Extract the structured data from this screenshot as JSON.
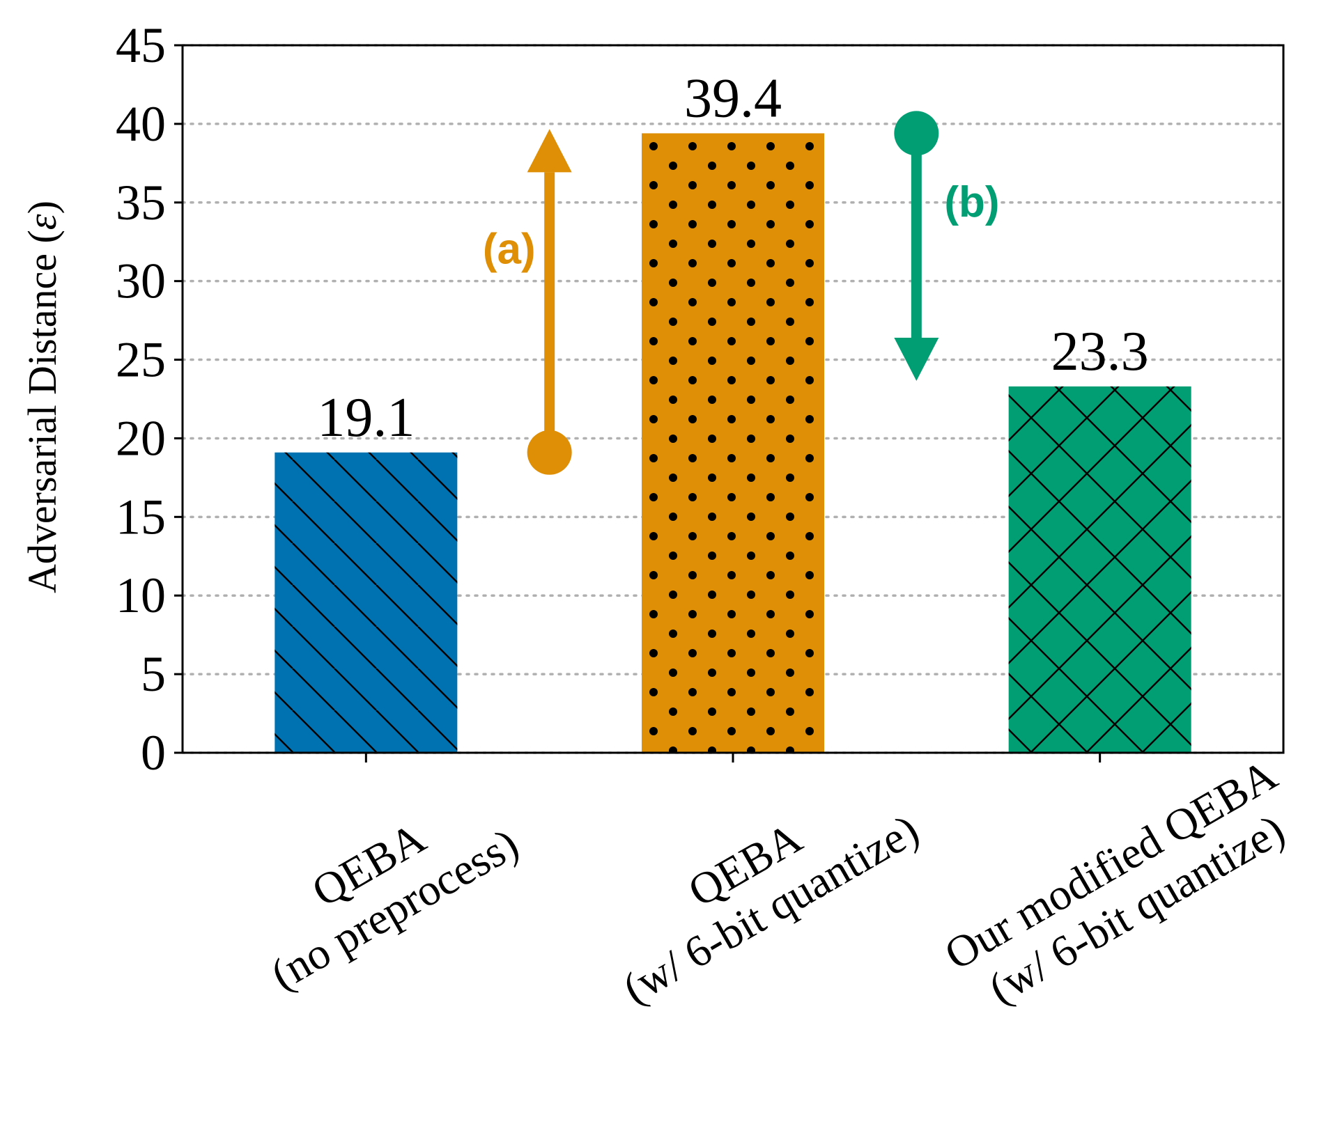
{
  "chart_data": {
    "type": "bar",
    "categories": [
      [
        "QEBA",
        "(no preprocess)"
      ],
      [
        "QEBA",
        "(w/ 6-bit quantize)"
      ],
      [
        "Our modified QEBA",
        "(w/ 6-bit quantize)"
      ]
    ],
    "values": [
      19.1,
      39.4,
      23.3
    ],
    "value_labels": [
      "19.1",
      "39.4",
      "23.3"
    ],
    "bar_colors": [
      "#0072b2",
      "#de8f05",
      "#029e73"
    ],
    "bar_hatches": [
      "diagonal",
      "dots",
      "crosshatch"
    ],
    "ylabel_prefix": "Adversarial Distance (",
    "ylabel_symbol": "ε",
    "ylabel_suffix": ")",
    "ylim": [
      0,
      45
    ],
    "yticks": [
      0,
      5,
      10,
      15,
      20,
      25,
      30,
      35,
      40,
      45
    ],
    "grid": {
      "axis": "y",
      "style": "dotted",
      "color": "#b0b0b0"
    },
    "annotations": [
      {
        "label": "(a)",
        "color": "#de8f05",
        "from": 19.1,
        "to": 39.4,
        "direction": "up"
      },
      {
        "label": "(b)",
        "color": "#029e73",
        "from": 39.4,
        "to": 23.3,
        "direction": "down"
      }
    ]
  }
}
